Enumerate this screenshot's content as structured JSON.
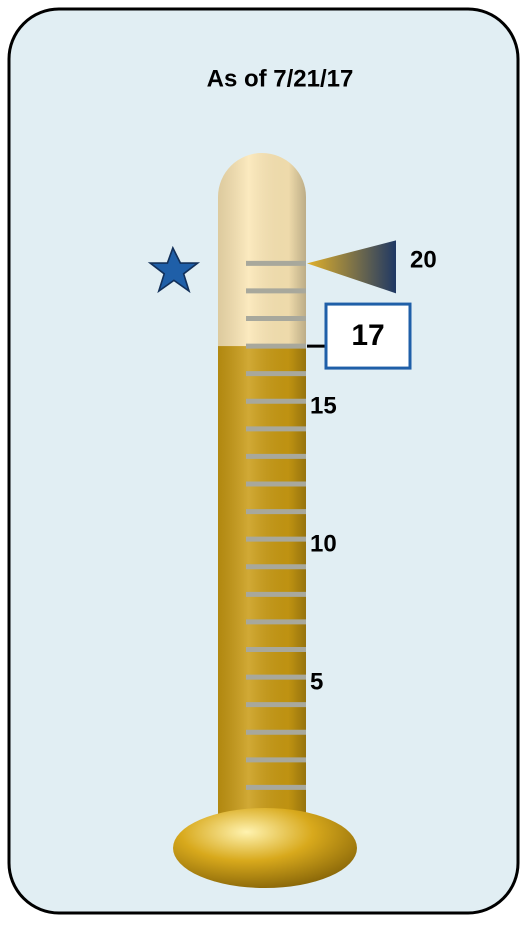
{
  "chart_data": {
    "type": "thermometer",
    "title": "As of 7/21/17",
    "value": 17,
    "target": 20,
    "ylim": [
      0,
      24
    ],
    "yticks": [
      5,
      10,
      15,
      20
    ],
    "minor_yticks": [
      1,
      2,
      3,
      4,
      5,
      6,
      7,
      8,
      9,
      10,
      11,
      12,
      13,
      14,
      15,
      16,
      17,
      18,
      19,
      20
    ],
    "fill_color": "#c99a12",
    "empty_color": "#fbe6b4",
    "tick_color": "#a8a89c",
    "target_color": "#1f3864",
    "marker_color": "#1f5fa8"
  }
}
